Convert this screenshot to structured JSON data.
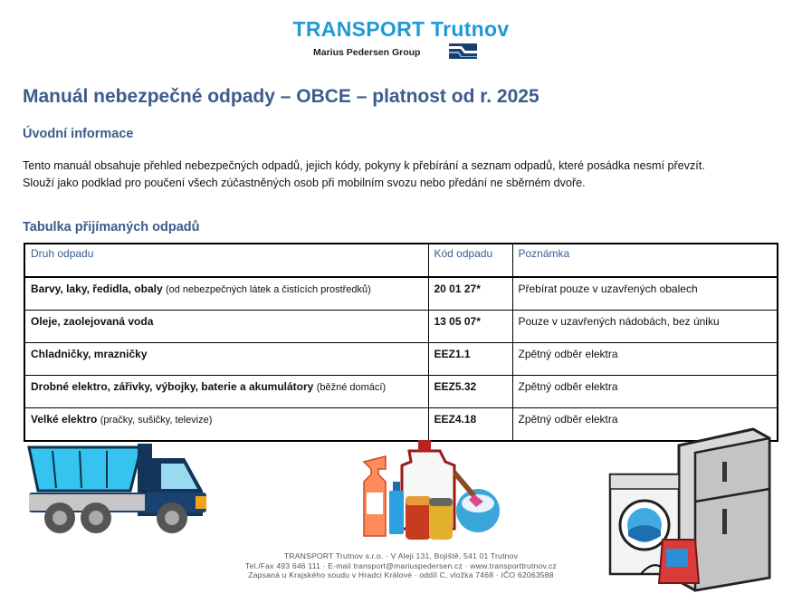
{
  "header": {
    "company": "TRANSPORT Trutnov",
    "group": "Marius Pedersen Group"
  },
  "document": {
    "title": "Manuál nebezpečné odpady – OBCE – platnost od r. 2025",
    "intro_heading": "Úvodní informace",
    "intro_line1": "Tento manuál obsahuje přehled nebezpečných odpadů, jejich kódy, pokyny k přebírání a seznam odpadů, které posádka nesmí převzít.",
    "intro_line2": "Slouží jako podklad pro poučení všech zúčastněných osob při mobilním svozu nebo předání ne sběrném dvoře.",
    "table_heading": "Tabulka přijímaných odpadů"
  },
  "table": {
    "columns": [
      "Druh odpadu",
      "Kód odpadu",
      "Poznámka"
    ],
    "rows": [
      {
        "name": "Barvy, laky, ředidla, obaly",
        "note": "(od nebezpečných látek a čistících prostředků)",
        "code": "20 01 27*",
        "remark": "Přebírat pouze v uzavřených obalech"
      },
      {
        "name": "Oleje, zaolejovaná voda",
        "note": "",
        "code": "13 05 07*",
        "remark": "Pouze v uzavřených nádobách, bez úniku"
      },
      {
        "name": "Chladničky, mrazničky",
        "note": "",
        "code": "EEZ1.1",
        "remark": "Zpětný odběr elektra"
      },
      {
        "name": "Drobné elektro, zářivky, výbojky,  baterie a akumulátory",
        "note": "(běžné domácí)",
        "code": "EEZ5.32",
        "remark": "Zpětný odběr elektra"
      },
      {
        "name": "Velké elektro",
        "note": "(pračky, sušičky, televize)",
        "code": "EEZ4.18",
        "remark": "Zpětný odběr elektra"
      }
    ]
  },
  "footer": {
    "line1": "TRANSPORT Trutnov s.r.o. · V Aleji 131, Bojiště, 541 01 Trutnov",
    "line2": "Tel./Fax 493 646 111 · E-mail transport@mariuspedersen.cz · www.transporttrutnov.cz",
    "line3": "Zapsaná u Krajského soudu v Hradci Králové · oddíl C, vložka 7468 · IČO 62063588"
  },
  "illustrations": [
    "dump-truck",
    "chemical-bottles",
    "washing-machine-and-fridge"
  ]
}
